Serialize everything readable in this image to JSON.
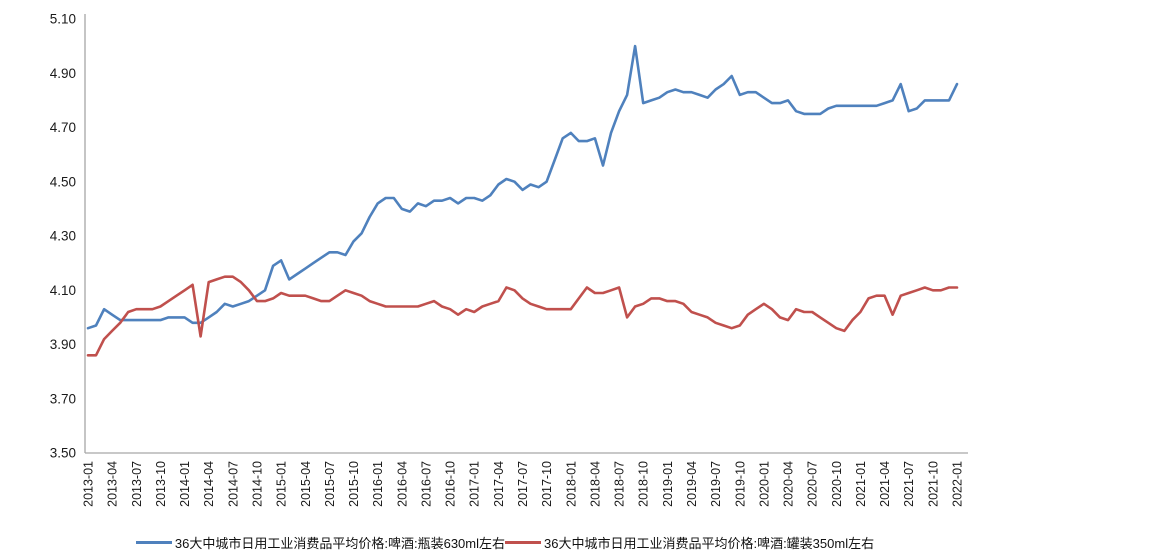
{
  "chart_data": {
    "type": "line",
    "title": "",
    "x_frequency": "monthly",
    "x_start": "2013-01",
    "x_end": "2022-01",
    "x_tick_labels": [
      "2013-01",
      "2013-04",
      "2013-07",
      "2013-10",
      "2014-01",
      "2014-04",
      "2014-07",
      "2014-10",
      "2015-01",
      "2015-04",
      "2015-07",
      "2015-10",
      "2016-01",
      "2016-04",
      "2016-07",
      "2016-10",
      "2017-01",
      "2017-04",
      "2017-07",
      "2017-10",
      "2018-01",
      "2018-04",
      "2018-07",
      "2018-10",
      "2019-01",
      "2019-04",
      "2019-07",
      "2019-10",
      "2020-01",
      "2020-04",
      "2020-07",
      "2020-10",
      "2021-01",
      "2021-04",
      "2021-07",
      "2021-10",
      "2022-01"
    ],
    "x_tick_every_months": 3,
    "y_tick_labels": [
      "5.10",
      "4.90",
      "4.70",
      "4.50",
      "4.30",
      "4.10",
      "3.90",
      "3.70",
      "3.50"
    ],
    "ylim": [
      3.5,
      5.1
    ],
    "grid": false,
    "legend_position": "bottom",
    "axis_color": "#a6a6a6",
    "text_color": "#1a1a1a",
    "series": [
      {
        "name": "36大中城市日用工业消费品平均价格:啤酒:瓶装630ml左右",
        "color": "#4F81BD",
        "values": [
          3.96,
          3.97,
          4.03,
          4.01,
          3.99,
          3.99,
          3.99,
          3.99,
          3.99,
          3.99,
          4.0,
          4.0,
          4.0,
          3.98,
          3.98,
          4.0,
          4.02,
          4.05,
          4.04,
          4.05,
          4.06,
          4.08,
          4.1,
          4.19,
          4.21,
          4.14,
          4.16,
          4.18,
          4.2,
          4.22,
          4.24,
          4.24,
          4.23,
          4.28,
          4.31,
          4.37,
          4.42,
          4.44,
          4.44,
          4.4,
          4.39,
          4.42,
          4.41,
          4.43,
          4.43,
          4.44,
          4.42,
          4.44,
          4.44,
          4.43,
          4.45,
          4.49,
          4.51,
          4.5,
          4.47,
          4.49,
          4.48,
          4.5,
          4.58,
          4.66,
          4.68,
          4.65,
          4.65,
          4.66,
          4.56,
          4.68,
          4.76,
          4.82,
          5.0,
          4.79,
          4.8,
          4.81,
          4.83,
          4.84,
          4.83,
          4.83,
          4.82,
          4.81,
          4.84,
          4.86,
          4.89,
          4.82,
          4.83,
          4.83,
          4.81,
          4.79,
          4.79,
          4.8,
          4.76,
          4.75,
          4.75,
          4.75,
          4.77,
          4.78,
          4.78,
          4.78,
          4.78,
          4.78,
          4.78,
          4.79,
          4.8,
          4.86,
          4.76,
          4.77,
          4.8,
          4.8,
          4.8,
          4.8,
          4.86
        ]
      },
      {
        "name": "36大中城市日用工业消费品平均价格:啤酒:罐装350ml左右",
        "color": "#C0504D",
        "values": [
          3.86,
          3.86,
          3.92,
          3.95,
          3.98,
          4.02,
          4.03,
          4.03,
          4.03,
          4.04,
          4.06,
          4.08,
          4.1,
          4.12,
          3.93,
          4.13,
          4.14,
          4.15,
          4.15,
          4.13,
          4.1,
          4.06,
          4.06,
          4.07,
          4.09,
          4.08,
          4.08,
          4.08,
          4.07,
          4.06,
          4.06,
          4.08,
          4.1,
          4.09,
          4.08,
          4.06,
          4.05,
          4.04,
          4.04,
          4.04,
          4.04,
          4.04,
          4.05,
          4.06,
          4.04,
          4.03,
          4.01,
          4.03,
          4.02,
          4.04,
          4.05,
          4.06,
          4.11,
          4.1,
          4.07,
          4.05,
          4.04,
          4.03,
          4.03,
          4.03,
          4.03,
          4.07,
          4.11,
          4.09,
          4.09,
          4.1,
          4.11,
          4.0,
          4.04,
          4.05,
          4.07,
          4.07,
          4.06,
          4.06,
          4.05,
          4.02,
          4.01,
          4.0,
          3.98,
          3.97,
          3.96,
          3.97,
          4.01,
          4.03,
          4.05,
          4.03,
          4.0,
          3.99,
          4.03,
          4.02,
          4.02,
          4.0,
          3.98,
          3.96,
          3.95,
          3.99,
          4.02,
          4.07,
          4.08,
          4.08,
          4.01,
          4.08,
          4.09,
          4.1,
          4.11,
          4.1,
          4.1,
          4.11,
          4.11
        ]
      }
    ]
  }
}
